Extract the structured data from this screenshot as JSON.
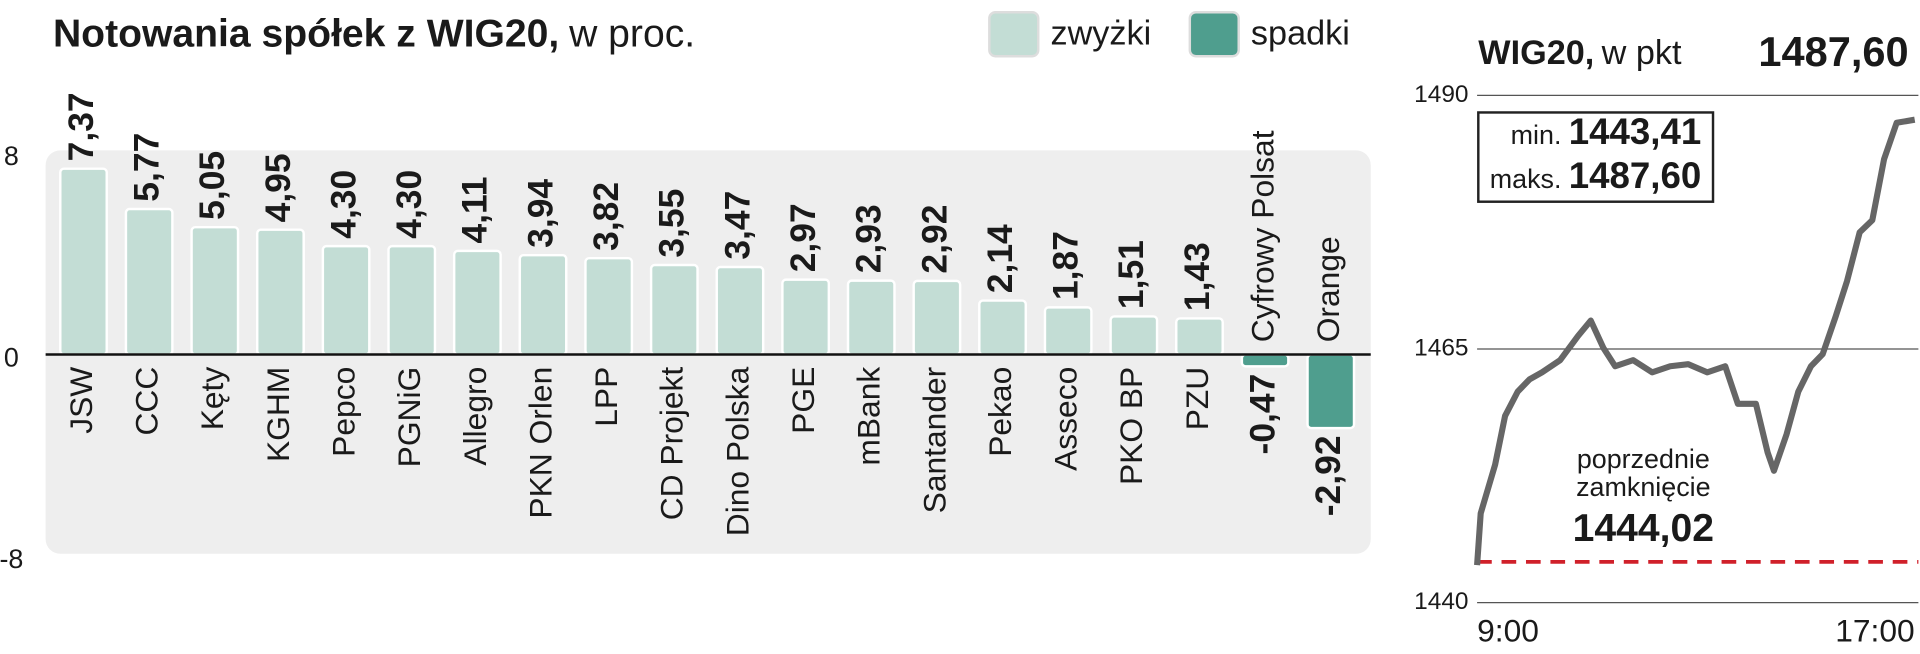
{
  "chart_data": [
    {
      "type": "bar",
      "title": "Notowania spółek z WIG20,",
      "unit": "w proc.",
      "categories": [
        "JSW",
        "CCC",
        "Kęty",
        "KGHM",
        "Pepco",
        "PGNiG",
        "Allegro",
        "PKN Orlen",
        "LPP",
        "CD Projekt",
        "Dino Polska",
        "PGE",
        "mBank",
        "Santander",
        "Pekao",
        "Asseco",
        "PKO BP",
        "PZU",
        "Cyfrowy Polsat",
        "Orange"
      ],
      "series": [
        {
          "name": "zwyżki",
          "color": "#c3ddd5",
          "values": [
            7.37,
            5.77,
            5.05,
            4.95,
            4.3,
            4.3,
            4.11,
            3.94,
            3.82,
            3.55,
            3.47,
            2.97,
            2.93,
            2.92,
            2.14,
            1.87,
            1.51,
            1.43,
            null,
            null
          ],
          "value_labels": [
            "7,37",
            "5,77",
            "5,05",
            "4,95",
            "4,30",
            "4,30",
            "4,11",
            "3,94",
            "3,82",
            "3,55",
            "3,47",
            "2,97",
            "2,93",
            "2,92",
            "2,14",
            "1,87",
            "1,51",
            "1,43",
            null,
            null
          ]
        },
        {
          "name": "spadki",
          "color": "#4f9e8e",
          "values": [
            null,
            null,
            null,
            null,
            null,
            null,
            null,
            null,
            null,
            null,
            null,
            null,
            null,
            null,
            null,
            null,
            null,
            null,
            -0.47,
            -2.92
          ],
          "value_labels": [
            null,
            null,
            null,
            null,
            null,
            null,
            null,
            null,
            null,
            null,
            null,
            null,
            null,
            null,
            null,
            null,
            null,
            null,
            "-0,47",
            "-2,92"
          ]
        }
      ],
      "ylim": [
        -8,
        8
      ],
      "yticks": [
        8,
        0,
        -8
      ]
    },
    {
      "type": "line",
      "title": "WIG20,",
      "unit": "w pkt",
      "last_label": "1487,60",
      "x": [
        "9:00",
        "9:04",
        "9:20",
        "9:31",
        "9:45",
        "9:58",
        "10:12",
        "10:32",
        "10:52",
        "11:06",
        "11:20",
        "11:33",
        "11:53",
        "12:14",
        "12:34",
        "12:54",
        "13:15",
        "13:35",
        "13:49",
        "14:09",
        "14:22",
        "14:29",
        "14:43",
        "14:56",
        "15:10",
        "15:23",
        "15:37",
        "15:50",
        "16:04",
        "16:18",
        "16:31",
        "16:45",
        "17:05"
      ],
      "series": [
        {
          "name": "WIG20",
          "color": "#666666",
          "values": [
            1443.7,
            1448.8,
            1453.6,
            1458.4,
            1460.8,
            1462.0,
            1462.7,
            1463.9,
            1466.3,
            1467.8,
            1465.1,
            1463.3,
            1463.9,
            1462.7,
            1463.3,
            1463.5,
            1462.7,
            1463.3,
            1459.6,
            1459.6,
            1454.8,
            1453.0,
            1456.6,
            1460.8,
            1463.3,
            1464.5,
            1468.1,
            1471.7,
            1476.5,
            1477.7,
            1483.7,
            1487.3,
            1487.6
          ]
        }
      ],
      "xlim": [
        "9:00",
        "17:05"
      ],
      "xticks": [
        "9:00",
        "17:00"
      ],
      "ylim": [
        1440,
        1490
      ],
      "yticks": [
        1490,
        1465,
        1440
      ],
      "grid": true,
      "min_label": "min.",
      "min_value": "1443,41",
      "max_label": "maks.",
      "max_value": "1487,60",
      "prev_close_text": [
        "poprzednie",
        "zamknięcie"
      ],
      "prev_close": {
        "value": 1444.02,
        "label": "1444,02"
      },
      "prev_close_color": "#d0202a"
    }
  ]
}
